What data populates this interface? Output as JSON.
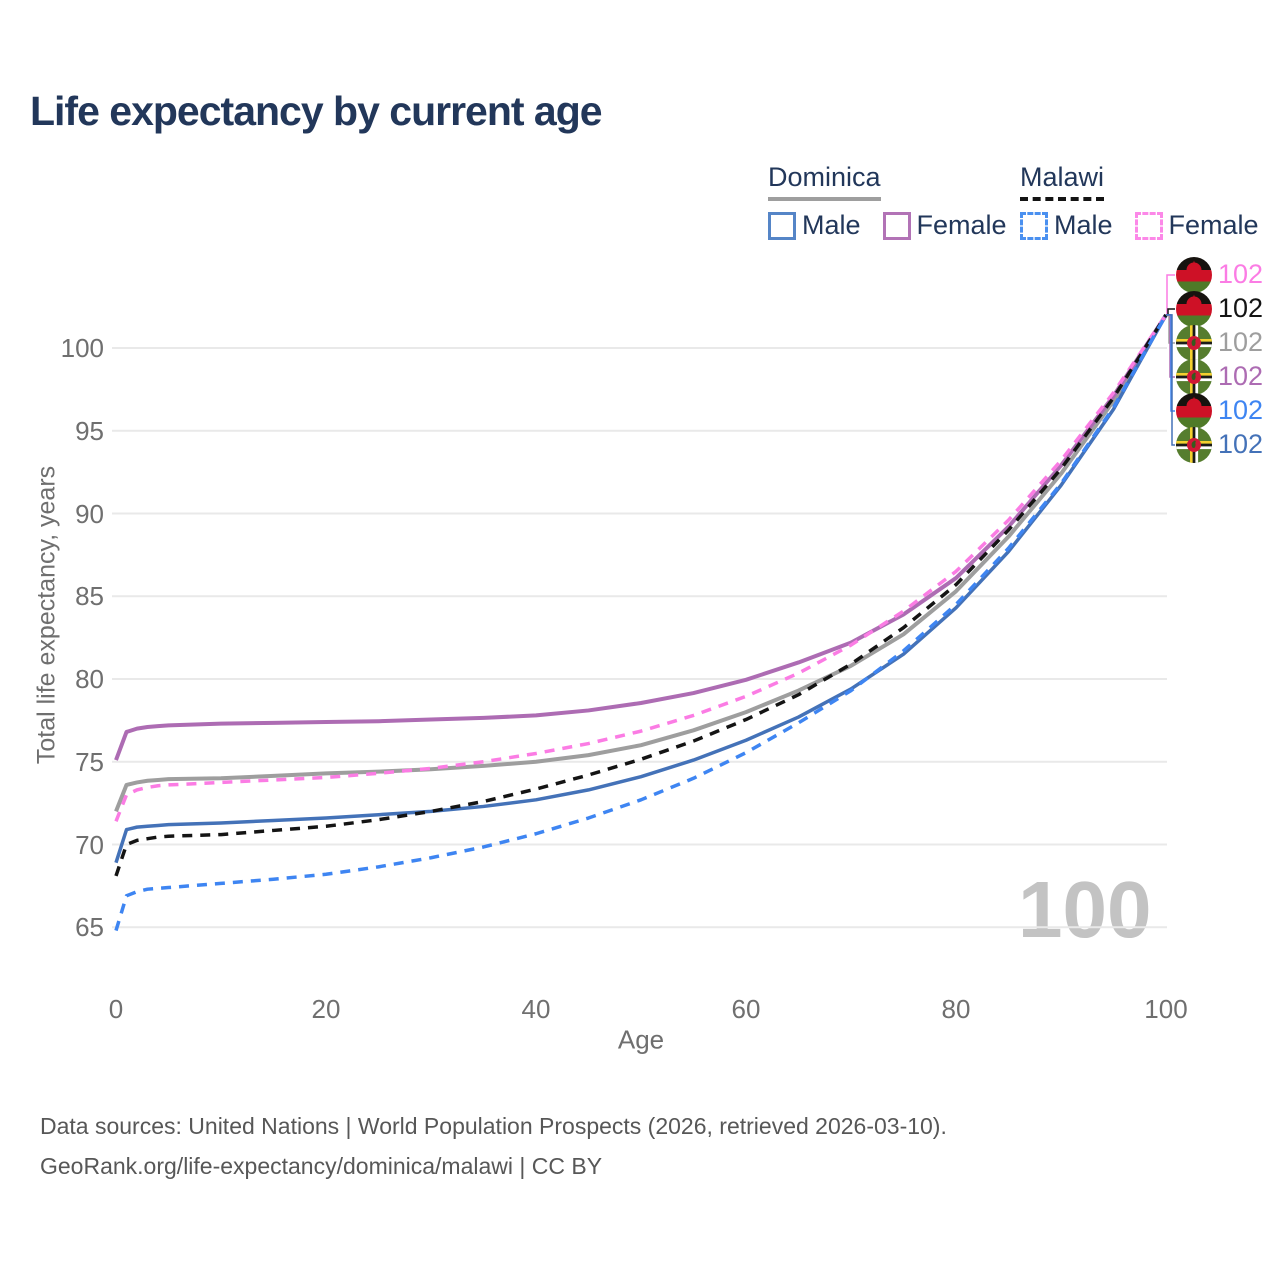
{
  "title": "Life expectancy by current age",
  "legend": {
    "groups": [
      {
        "label": "Dominica",
        "line_style": "solid",
        "line_color": "#9e9e9e",
        "items": [
          {
            "label": "Male",
            "color": "#5585c7",
            "style": "solid"
          },
          {
            "label": "Female",
            "color": "#b273b6",
            "style": "solid"
          }
        ]
      },
      {
        "label": "Malawi",
        "line_style": "dashed",
        "line_color": "#141414",
        "items": [
          {
            "label": "Male",
            "color": "#4a90f0",
            "style": "dashed"
          },
          {
            "label": "Female",
            "color": "#fc88e8",
            "style": "dashed"
          }
        ]
      }
    ]
  },
  "watermark": "100",
  "footer": {
    "line1": "Data sources: United Nations | World Population Prospects (2026, retrieved 2026-03-10).",
    "line2": "GeoRank.org/life-expectancy/dominica/malawi | CC BY"
  },
  "chart_data": {
    "type": "line",
    "title": "Life expectancy by current age",
    "xlabel": "Age",
    "ylabel": "Total life expectancy, years",
    "x_ticks": [
      0,
      20,
      40,
      60,
      80,
      100
    ],
    "y_ticks": [
      65,
      70,
      75,
      80,
      85,
      90,
      95,
      100
    ],
    "xlim": [
      0,
      100
    ],
    "ylim": [
      63,
      103
    ],
    "grid": "horizontal",
    "legend_position": "top-right",
    "x": [
      0,
      1,
      2,
      3,
      4,
      5,
      10,
      15,
      20,
      25,
      30,
      35,
      40,
      45,
      50,
      55,
      60,
      65,
      70,
      75,
      80,
      85,
      90,
      95,
      100
    ],
    "series": [
      {
        "name": "Dominica",
        "country": "Dominica",
        "sex": "both",
        "color": "#9e9e9e",
        "dash": false,
        "width": 4,
        "values": [
          72.0,
          73.6,
          73.75,
          73.85,
          73.9,
          73.95,
          74.0,
          74.15,
          74.3,
          74.4,
          74.55,
          74.75,
          75.0,
          75.4,
          76.0,
          76.9,
          78.0,
          79.3,
          80.8,
          82.7,
          85.3,
          88.6,
          92.4,
          96.8,
          102
        ]
      },
      {
        "name": "Dominica Female",
        "country": "Dominica",
        "sex": "female",
        "color": "#ad6cb3",
        "dash": false,
        "width": 4,
        "values": [
          75.1,
          76.8,
          77.0,
          77.1,
          77.15,
          77.2,
          77.3,
          77.35,
          77.4,
          77.45,
          77.55,
          77.65,
          77.8,
          78.1,
          78.55,
          79.15,
          79.95,
          81.0,
          82.2,
          83.9,
          86.1,
          89.2,
          92.9,
          97.1,
          102
        ]
      },
      {
        "name": "Dominica Male",
        "country": "Dominica",
        "sex": "male",
        "color": "#4472b8",
        "dash": false,
        "width": 3.5,
        "values": [
          68.9,
          70.9,
          71.05,
          71.1,
          71.15,
          71.2,
          71.3,
          71.45,
          71.6,
          71.8,
          72.0,
          72.3,
          72.7,
          73.3,
          74.1,
          75.1,
          76.3,
          77.7,
          79.4,
          81.5,
          84.3,
          87.7,
          91.7,
          96.3,
          102
        ]
      },
      {
        "name": "Malawi Female",
        "country": "Malawi",
        "sex": "female",
        "color": "#fb7ce4",
        "dash": true,
        "width": 3.5,
        "values": [
          71.4,
          73.0,
          73.3,
          73.45,
          73.55,
          73.6,
          73.75,
          73.9,
          74.05,
          74.3,
          74.6,
          75.0,
          75.5,
          76.1,
          76.85,
          77.8,
          78.95,
          80.35,
          82.05,
          84.1,
          86.5,
          89.6,
          93.2,
          97.3,
          102
        ]
      },
      {
        "name": "Malawi",
        "country": "Malawi",
        "sex": "both",
        "color": "#141414",
        "dash": true,
        "width": 3.5,
        "values": [
          68.1,
          70.0,
          70.25,
          70.35,
          70.45,
          70.5,
          70.6,
          70.85,
          71.1,
          71.5,
          72.0,
          72.6,
          73.35,
          74.2,
          75.15,
          76.25,
          77.55,
          79.05,
          80.9,
          83.1,
          85.7,
          89.0,
          92.7,
          97.0,
          102
        ]
      },
      {
        "name": "Malawi Male",
        "country": "Malawi",
        "sex": "male",
        "color": "#3e85f2",
        "dash": true,
        "width": 3.5,
        "values": [
          64.8,
          66.9,
          67.15,
          67.3,
          67.35,
          67.4,
          67.65,
          67.9,
          68.2,
          68.65,
          69.2,
          69.85,
          70.65,
          71.6,
          72.7,
          74.0,
          75.55,
          77.35,
          79.3,
          81.7,
          84.5,
          87.9,
          91.8,
          96.4,
          102
        ]
      }
    ],
    "end_labels": [
      {
        "value": "102",
        "series": "Malawi Female",
        "color": "#fb7ce4",
        "flag": "malawi"
      },
      {
        "value": "102",
        "series": "Malawi",
        "color": "#141414",
        "flag": "malawi"
      },
      {
        "value": "102",
        "series": "Dominica",
        "color": "#9e9e9e",
        "flag": "dominica"
      },
      {
        "value": "102",
        "series": "Dominica Female",
        "color": "#ad6cb3",
        "flag": "dominica"
      },
      {
        "value": "102",
        "series": "Malawi Male",
        "color": "#3e85f2",
        "flag": "malawi"
      },
      {
        "value": "102",
        "series": "Dominica Male",
        "color": "#4472b8",
        "flag": "dominica"
      }
    ]
  }
}
